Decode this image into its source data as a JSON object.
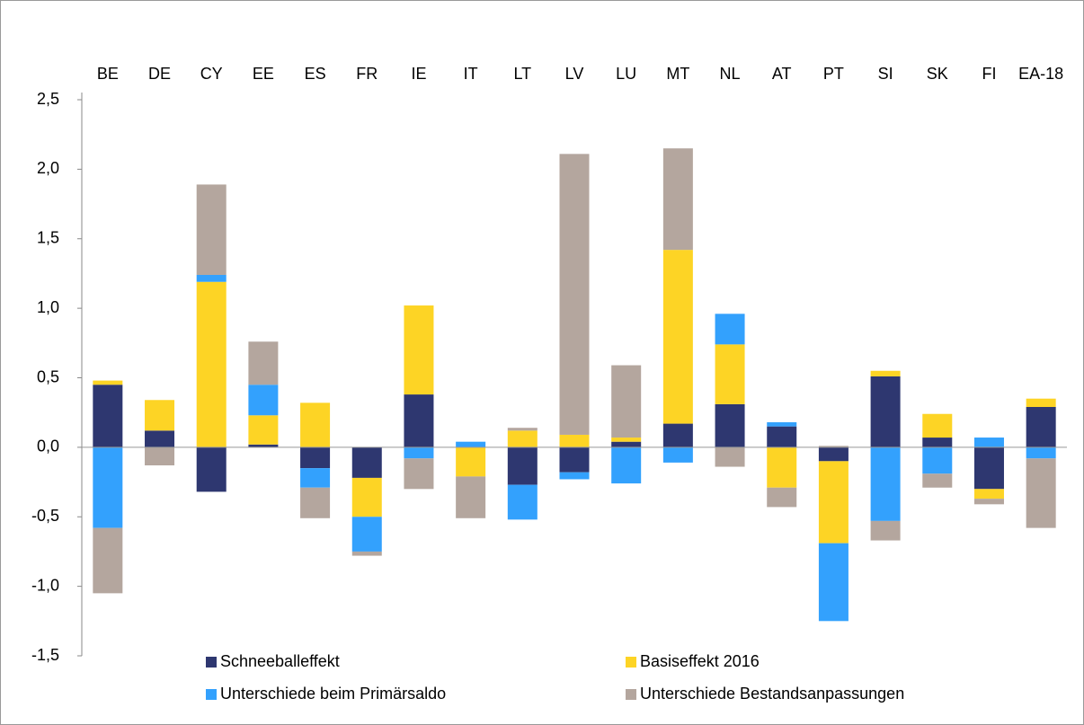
{
  "chart_data": {
    "type": "stacked_bar",
    "categories": [
      "BE",
      "DE",
      "CY",
      "EE",
      "ES",
      "FR",
      "IE",
      "IT",
      "LT",
      "LV",
      "LU",
      "MT",
      "NL",
      "AT",
      "PT",
      "SI",
      "SK",
      "FI",
      "EA-18"
    ],
    "series": [
      {
        "name": "Schneeballeffekt",
        "color": "#2e3770",
        "values": [
          0.45,
          0.12,
          -0.32,
          0.02,
          -0.15,
          -0.22,
          0.38,
          0,
          -0.27,
          -0.18,
          0.04,
          0.17,
          0.31,
          0.15,
          -0.1,
          0.51,
          0.07,
          -0.3,
          0.29
        ]
      },
      {
        "name": "Basiseffekt 2016",
        "color": "#fdd425",
        "values": [
          0.03,
          0.22,
          1.19,
          0.21,
          0.32,
          -0.28,
          0.64,
          -0.21,
          0.12,
          0.09,
          0.03,
          1.25,
          0.43,
          -0.29,
          -0.59,
          0.04,
          0.17,
          -0.07,
          0.06
        ]
      },
      {
        "name": "Unterschiede beim Primärsaldo",
        "color": "#33a1fd",
        "values": [
          -0.58,
          0,
          0.05,
          0.22,
          -0.14,
          -0.25,
          -0.08,
          0.04,
          -0.25,
          -0.05,
          -0.26,
          -0.11,
          0.22,
          0.03,
          -0.56,
          -0.53,
          -0.19,
          0.07,
          -0.08
        ]
      },
      {
        "name": "Unterschiede Bestandsanpassungen",
        "color": "#b4a69e",
        "values": [
          -0.47,
          -0.13,
          0.65,
          0.31,
          -0.22,
          -0.03,
          -0.22,
          -0.3,
          0.02,
          2.02,
          0.52,
          0.73,
          -0.14,
          -0.14,
          0.01,
          -0.14,
          -0.1,
          -0.04,
          -0.5
        ]
      }
    ],
    "ylim": [
      -1.5,
      2.5
    ],
    "yticks": [
      {
        "value": -1.5,
        "label": "-1,5"
      },
      {
        "value": -1.0,
        "label": "-1,0"
      },
      {
        "value": -0.5,
        "label": "-0,5"
      },
      {
        "value": 0,
        "label": "0,0"
      },
      {
        "value": 0.5,
        "label": "0,5"
      },
      {
        "value": 1.0,
        "label": "1,0"
      },
      {
        "value": 1.5,
        "label": "1,5"
      },
      {
        "value": 2.0,
        "label": "2,0"
      },
      {
        "value": 2.5,
        "label": "2,5"
      }
    ],
    "legend": "bottom"
  }
}
